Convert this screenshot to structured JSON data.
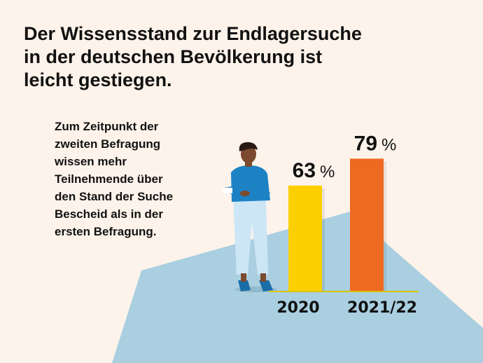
{
  "title_lines": [
    "Der Wissensstand zur Endlagersuche",
    "in der deutschen Bevölkerung ist",
    "leicht gestiegen."
  ],
  "description_lines": [
    "Zum Zeitpunkt der",
    "zweiten Befragung",
    "wissen mehr",
    "Teilnehmende über",
    "den Stand der Suche",
    "Bescheid als in der",
    "ersten Befragung."
  ],
  "colors": {
    "background": "#fdf3ea",
    "ground": "#a9cfe0",
    "bar_2020": "#fcd000",
    "bar_2021": "#ee6a21",
    "figure_shirt": "#1d82c4",
    "figure_pants": "#cde6f6"
  },
  "chart_data": {
    "type": "bar",
    "categories": [
      "2020",
      "2021/22"
    ],
    "values": [
      63,
      79
    ],
    "value_labels": [
      "63 %",
      "79 %"
    ],
    "unit": "%",
    "colors": [
      "#fcd000",
      "#ee6a21"
    ]
  }
}
